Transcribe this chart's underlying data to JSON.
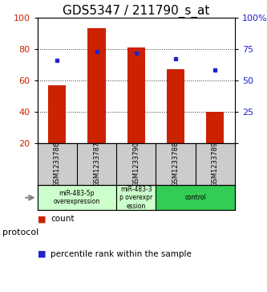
{
  "title": "GDS5347 / 211790_s_at",
  "samples": [
    "GSM1233786",
    "GSM1233787",
    "GSM1233790",
    "GSM1233788",
    "GSM1233789"
  ],
  "counts": [
    57,
    93,
    81,
    67,
    40
  ],
  "percentiles": [
    66,
    73,
    72,
    67,
    58
  ],
  "ylim_left": [
    20,
    100
  ],
  "ylim_right": [
    0,
    100
  ],
  "yticks_left": [
    20,
    40,
    60,
    80,
    100
  ],
  "yticks_right": [
    0,
    25,
    50,
    75,
    100
  ],
  "bar_color": "#cc2200",
  "dot_color": "#2222cc",
  "bar_bottom": 20,
  "protocols": [
    {
      "label": "miR-483-5p\noverexpression",
      "span": [
        0,
        2
      ],
      "color": "#ccffcc"
    },
    {
      "label": "miR-483-3\np overexpr\nession",
      "span": [
        2,
        3
      ],
      "color": "#ccffcc"
    },
    {
      "label": "control",
      "span": [
        3,
        5
      ],
      "color": "#33cc55"
    }
  ],
  "protocol_label": "protocol",
  "legend_count_label": "count",
  "legend_pct_label": "percentile rank within the sample",
  "bg_color": "#ffffff",
  "plot_bg_color": "#ffffff",
  "sample_box_color": "#cccccc",
  "title_fontsize": 11,
  "tick_fontsize": 8,
  "bar_width": 0.45
}
